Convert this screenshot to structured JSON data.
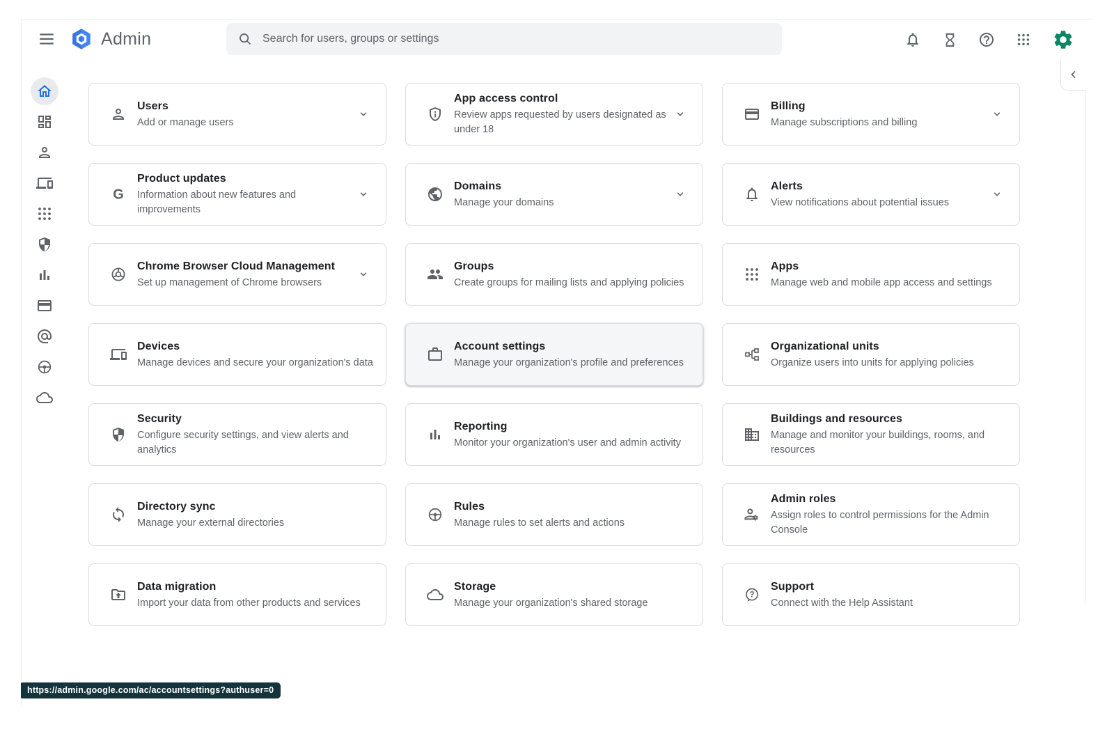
{
  "header": {
    "brand": "Admin",
    "search_placeholder": "Search for users, groups or settings",
    "icon_names": [
      "bell",
      "hourglass",
      "help",
      "apps-grid",
      "admin-gear"
    ]
  },
  "sidebar": {
    "items": [
      {
        "id": "home",
        "icon": "home",
        "active": true
      },
      {
        "id": "dashboard",
        "icon": "dashboard",
        "active": false
      },
      {
        "id": "directory",
        "icon": "person",
        "active": false
      },
      {
        "id": "devices",
        "icon": "devices",
        "active": false
      },
      {
        "id": "apps",
        "icon": "apps-grid",
        "active": false
      },
      {
        "id": "security",
        "icon": "shield-half",
        "active": false
      },
      {
        "id": "reporting",
        "icon": "bar-chart",
        "active": false
      },
      {
        "id": "billing",
        "icon": "credit-card",
        "active": false
      },
      {
        "id": "account",
        "icon": "at-sign",
        "active": false
      },
      {
        "id": "rules",
        "icon": "steering-wheel",
        "active": false
      },
      {
        "id": "storage",
        "icon": "cloud",
        "active": false
      }
    ]
  },
  "main": {
    "cards": [
      {
        "id": "users",
        "icon": "person",
        "title": "Users",
        "desc": "Add or manage users",
        "chevron": true,
        "hovered": false
      },
      {
        "id": "app-access-control",
        "icon": "shield-info",
        "title": "App access control",
        "desc": "Review apps requested by users designated as under 18",
        "chevron": true,
        "hovered": false
      },
      {
        "id": "billing",
        "icon": "credit-card",
        "title": "Billing",
        "desc": "Manage subscriptions and billing",
        "chevron": true,
        "hovered": false
      },
      {
        "id": "product-updates",
        "icon": "google-g",
        "title": "Product updates",
        "desc": "Information about new features and improvements",
        "chevron": true,
        "hovered": false
      },
      {
        "id": "domains",
        "icon": "globe",
        "title": "Domains",
        "desc": "Manage your domains",
        "chevron": true,
        "hovered": false
      },
      {
        "id": "alerts",
        "icon": "bell",
        "title": "Alerts",
        "desc": "View notifications about potential issues",
        "chevron": true,
        "hovered": false
      },
      {
        "id": "chrome-browser-cloud-management",
        "icon": "chrome",
        "title": "Chrome Browser Cloud Management",
        "desc": "Set up management of Chrome browsers",
        "chevron": true,
        "hovered": false
      },
      {
        "id": "groups",
        "icon": "groups",
        "title": "Groups",
        "desc": "Create groups for mailing lists and applying policies",
        "chevron": false,
        "hovered": false
      },
      {
        "id": "apps",
        "icon": "apps-grid",
        "title": "Apps",
        "desc": "Manage web and mobile app access and settings",
        "chevron": false,
        "hovered": false
      },
      {
        "id": "devices",
        "icon": "devices",
        "title": "Devices",
        "desc": "Manage devices and secure your organization's data",
        "chevron": false,
        "hovered": false
      },
      {
        "id": "account-settings",
        "icon": "briefcase",
        "title": "Account settings",
        "desc": "Manage your organization's profile and preferences",
        "chevron": false,
        "hovered": true
      },
      {
        "id": "organizational-units",
        "icon": "org-tree",
        "title": "Organizational units",
        "desc": "Organize users into units for applying policies",
        "chevron": false,
        "hovered": false
      },
      {
        "id": "security",
        "icon": "shield-half",
        "title": "Security",
        "desc": "Configure security settings, and view alerts and analytics",
        "chevron": false,
        "hovered": false
      },
      {
        "id": "reporting",
        "icon": "bar-chart",
        "title": "Reporting",
        "desc": "Monitor your organization's user and admin activity",
        "chevron": false,
        "hovered": false
      },
      {
        "id": "buildings-and-resources",
        "icon": "building",
        "title": "Buildings and resources",
        "desc": "Manage and monitor your buildings, rooms, and resources",
        "chevron": false,
        "hovered": false
      },
      {
        "id": "directory-sync",
        "icon": "sync",
        "title": "Directory sync",
        "desc": "Manage your external directories",
        "chevron": false,
        "hovered": false
      },
      {
        "id": "rules",
        "icon": "steering-wheel",
        "title": "Rules",
        "desc": "Manage rules to set alerts and actions",
        "chevron": false,
        "hovered": false
      },
      {
        "id": "admin-roles",
        "icon": "person-gear",
        "title": "Admin roles",
        "desc": "Assign roles to control permissions for the Admin Console",
        "chevron": false,
        "hovered": false
      },
      {
        "id": "data-migration",
        "icon": "folder-upload",
        "title": "Data migration",
        "desc": "Import your data from other products and services",
        "chevron": false,
        "hovered": false
      },
      {
        "id": "storage",
        "icon": "cloud",
        "title": "Storage",
        "desc": "Manage your organization's shared storage",
        "chevron": false,
        "hovered": false
      },
      {
        "id": "support",
        "icon": "help-bubble",
        "title": "Support",
        "desc": "Connect with the Help Assistant",
        "chevron": false,
        "hovered": false
      }
    ]
  },
  "side_panel": {
    "collapse_icon": "chevron-left"
  },
  "status": {
    "url": "https://admin.google.com/ac/accountsettings?authuser=0"
  },
  "colors": {
    "accent_blue": "#1a73e8",
    "icon_gray": "#5f6368",
    "card_border": "#dadce0",
    "search_bg": "#f1f3f4",
    "tooltip_bg": "#14333a",
    "avatar_teal": "#0b8467",
    "logo_blue": "#4285f4"
  }
}
